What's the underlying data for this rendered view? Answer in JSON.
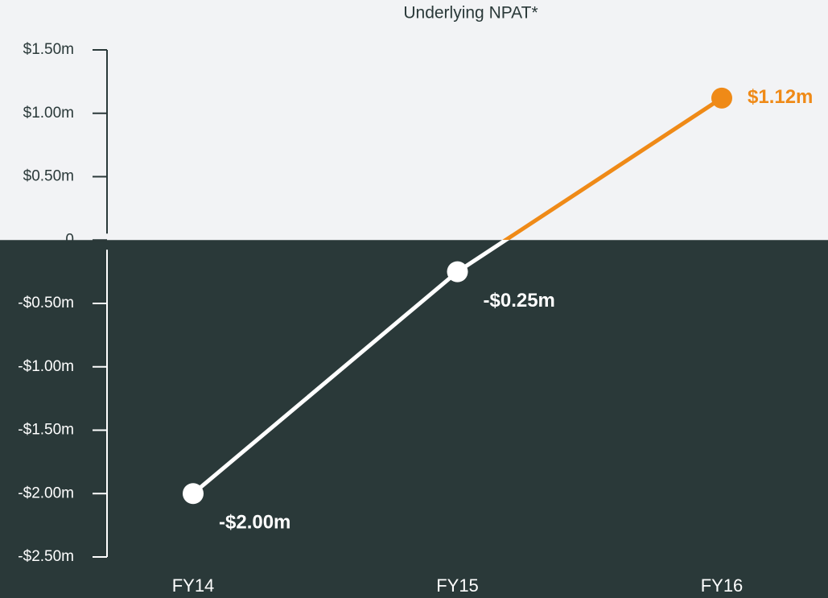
{
  "chart_data": {
    "type": "line",
    "title": "Underlying NPAT*",
    "categories": [
      "FY14",
      "FY15",
      "FY16"
    ],
    "series": [
      {
        "values": [
          -2.0,
          -0.25,
          1.12
        ],
        "value_labels": [
          "-$2.00m",
          "-$0.25m",
          "$1.12m"
        ]
      }
    ],
    "positive_color": "#ef8a17",
    "negative_color": "#ffffff",
    "ylim": [
      -2.5,
      1.5
    ],
    "yticks": [
      {
        "value": -2.5,
        "label": "-$2.50m"
      },
      {
        "value": -2,
        "label": "-$2.00m"
      },
      {
        "value": -1.5,
        "label": "-$1.50m"
      },
      {
        "value": -1,
        "label": "-$1.00m"
      },
      {
        "value": -0.5,
        "label": "-$0.50m"
      },
      0,
      {
        "value": 0.5,
        "label": "$0.50m"
      },
      {
        "value": 1,
        "label": "$1.00m"
      },
      {
        "value": 1.5,
        "label": "$1.50m"
      }
    ]
  }
}
